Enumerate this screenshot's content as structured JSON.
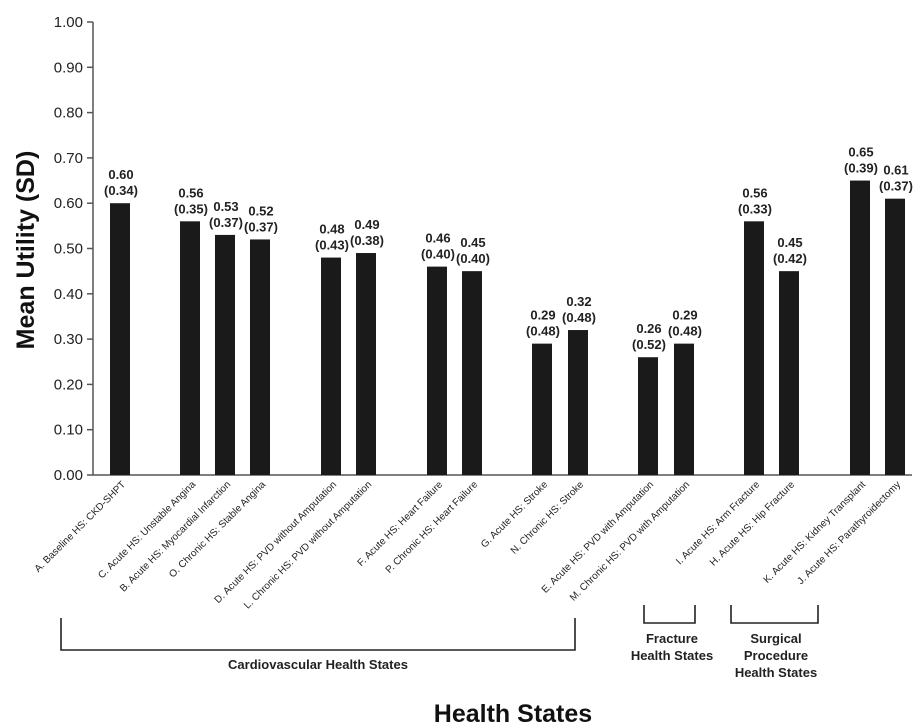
{
  "chart_data": {
    "type": "bar",
    "title": "",
    "xlabel": "Health States",
    "ylabel": "Mean Utility (SD)",
    "ylim": [
      0,
      1.0
    ],
    "yticks": [
      "0.00",
      "0.10",
      "0.20",
      "0.30",
      "0.40",
      "0.50",
      "0.60",
      "0.70",
      "0.80",
      "0.90",
      "1.00"
    ],
    "grid": false,
    "categories": [
      "A. Baseline HS: CKD-SHPT",
      "C. Acute HS: Unstable Angina",
      "B. Acute HS: Myocardial Infarction",
      "O. Chronic HS: Stable Angina",
      "D. Acute HS: PVD without Amputation",
      "L. Chronic HS: PVD without Amputation",
      "F. Acute HS: Heart Failure",
      "P. Chronic HS: Heart Failure",
      "G. Acute HS: Stroke",
      "N. Chronic HS: Stroke",
      "E. Acute HS: PVD with Amputation",
      "M. Chronic HS: PVD with Amputation",
      "I. Acute HS: Arm Fracture",
      "H. Acute HS: Hip Fracture",
      "K. Acute HS: Kidney Transplant",
      "J. Acute HS: Parathyroidectomy"
    ],
    "values": [
      0.6,
      0.56,
      0.53,
      0.52,
      0.48,
      0.49,
      0.46,
      0.45,
      0.29,
      0.32,
      0.26,
      0.29,
      0.56,
      0.45,
      0.65,
      0.61
    ],
    "labels_mean": [
      "0.60",
      "0.56",
      "0.53",
      "0.52",
      "0.48",
      "0.49",
      "0.46",
      "0.45",
      "0.29",
      "0.32",
      "0.26",
      "0.29",
      "0.56",
      "0.45",
      "0.65",
      "0.61"
    ],
    "labels_sd": [
      "(0.34)",
      "(0.35)",
      "(0.37)",
      "(0.37)",
      "(0.43)",
      "(0.38)",
      "(0.40)",
      "(0.40)",
      "(0.48)",
      "(0.48)",
      "(0.52)",
      "(0.48)",
      "(0.33)",
      "(0.42)",
      "(0.39)",
      "(0.37)"
    ],
    "groups": [
      {
        "name": "Cardiovascular Health States",
        "lines": [
          "Cardiovascular Health States"
        ],
        "from": 0,
        "to": 11
      },
      {
        "name": "Fracture Health States",
        "lines": [
          "Fracture",
          "Health States"
        ],
        "from": 12,
        "to": 13
      },
      {
        "name": "Surgical Procedure Health States",
        "lines": [
          "Surgical",
          "Procedure",
          "Health States"
        ],
        "from": 14,
        "to": 15
      }
    ],
    "colors": {
      "bar": "#1a1a1a",
      "axis": "#555555"
    }
  }
}
